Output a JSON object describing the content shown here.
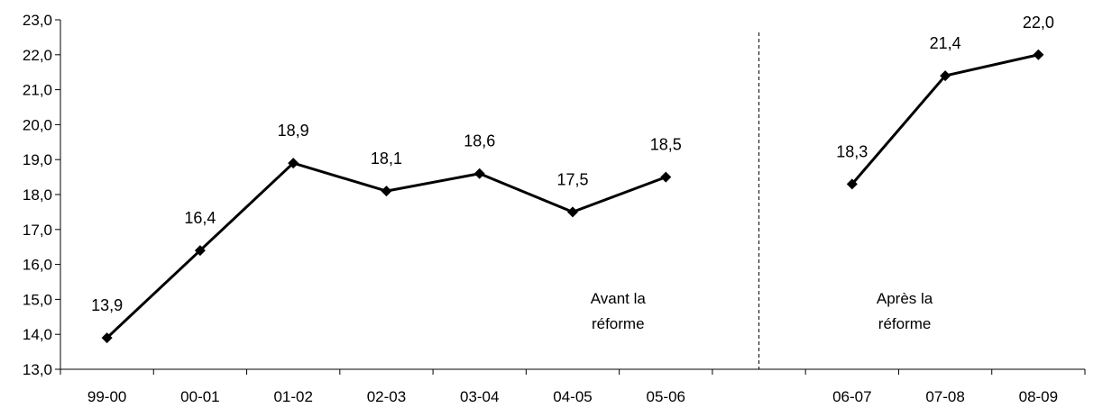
{
  "chart_data": {
    "type": "line",
    "title": "",
    "xlabel": "",
    "ylabel": "",
    "ylim": [
      13,
      23
    ],
    "yticks": [
      "13,0",
      "14,0",
      "15,0",
      "16,0",
      "17,0",
      "18,0",
      "19,0",
      "20,0",
      "21,0",
      "22,0",
      "23,0"
    ],
    "categories": [
      "99-00",
      "00-01",
      "01-02",
      "02-03",
      "03-04",
      "04-05",
      "05-06",
      "",
      "06-07",
      "07-08",
      "08-09"
    ],
    "series": [
      {
        "segments": [
          {
            "x": [
              "99-00",
              "00-01",
              "01-02",
              "02-03",
              "03-04",
              "04-05",
              "05-06"
            ],
            "values": [
              13.9,
              16.4,
              18.9,
              18.1,
              18.6,
              17.5,
              18.5
            ],
            "labels": [
              "13,9",
              "16,4",
              "18,9",
              "18,1",
              "18,6",
              "17,5",
              "18,5"
            ]
          },
          {
            "x": [
              "06-07",
              "07-08",
              "08-09"
            ],
            "values": [
              18.3,
              21.4,
              22.0
            ],
            "labels": [
              "18,3",
              "21,4",
              "22,0"
            ]
          }
        ]
      }
    ],
    "annotations": [
      {
        "lines": [
          "Avant la",
          "réforme"
        ]
      },
      {
        "lines": [
          "Après la",
          "réforme"
        ]
      }
    ],
    "divider": "dashed vertical line between 05-06 and 06-07",
    "grid": false,
    "marker": "diamond",
    "colors": {
      "line": "#000000",
      "axis": "#000000"
    }
  }
}
